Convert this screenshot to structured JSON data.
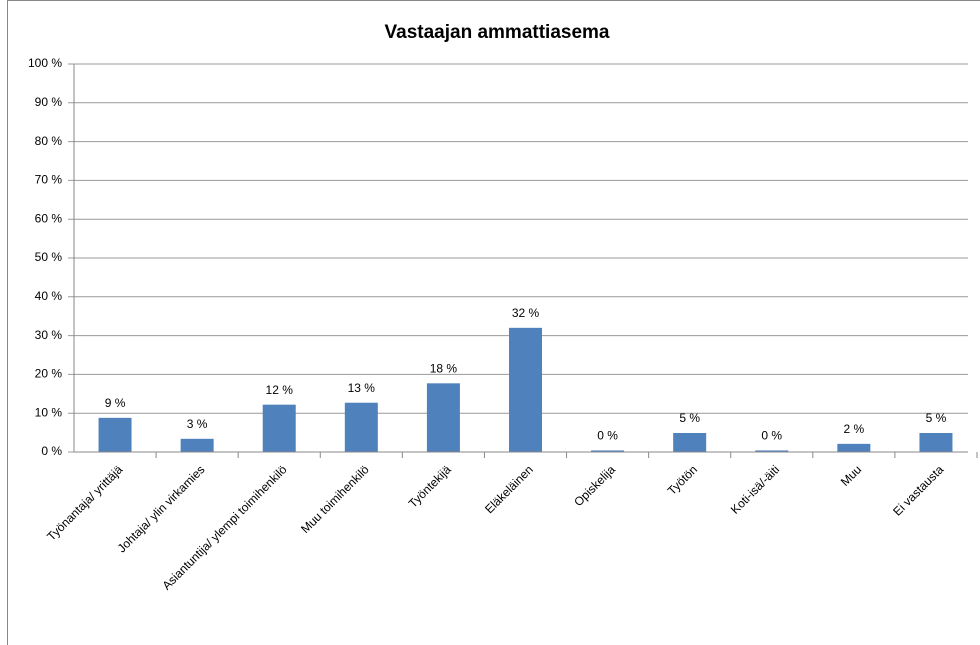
{
  "chart_data": {
    "type": "bar",
    "title": "Vastaajan ammattiasema",
    "categories": [
      "Työnantaja/ yrittäjä",
      "Johtaja/ ylin virkamies",
      "Asiantuntija/ ylempi toimihenkilö",
      "Muu toimihenkilö",
      "Työntekijä",
      "Eläkeläinen",
      "Opiskelija",
      "Työtön",
      "Koti-isä/-äiti",
      "Muu",
      "Ei vastausta"
    ],
    "values": [
      8.8,
      3.4,
      12.2,
      12.7,
      17.7,
      32,
      0.4,
      4.9,
      0.4,
      2.1,
      4.9
    ],
    "value_labels": [
      "9 %",
      "3 %",
      "12 %",
      "13 %",
      "18 %",
      "32 %",
      "0 %",
      "5 %",
      "0 %",
      "2 %",
      "5 %"
    ],
    "color": "#4f81bd",
    "ylim": [
      0,
      100
    ],
    "yticks": [
      {
        "value": 0,
        "label": "0 %"
      },
      {
        "value": 10,
        "label": "10 %"
      },
      {
        "value": 20,
        "label": "20 %"
      },
      {
        "value": 30,
        "label": "30 %"
      },
      {
        "value": 40,
        "label": "40 %"
      },
      {
        "value": 50,
        "label": "50 %"
      },
      {
        "value": 60,
        "label": "60 %"
      },
      {
        "value": 70,
        "label": "70 %"
      },
      {
        "value": 80,
        "label": "80 %"
      },
      {
        "value": 90,
        "label": "90 %"
      },
      {
        "value": 100,
        "label": "100 %"
      }
    ],
    "grid": true
  }
}
